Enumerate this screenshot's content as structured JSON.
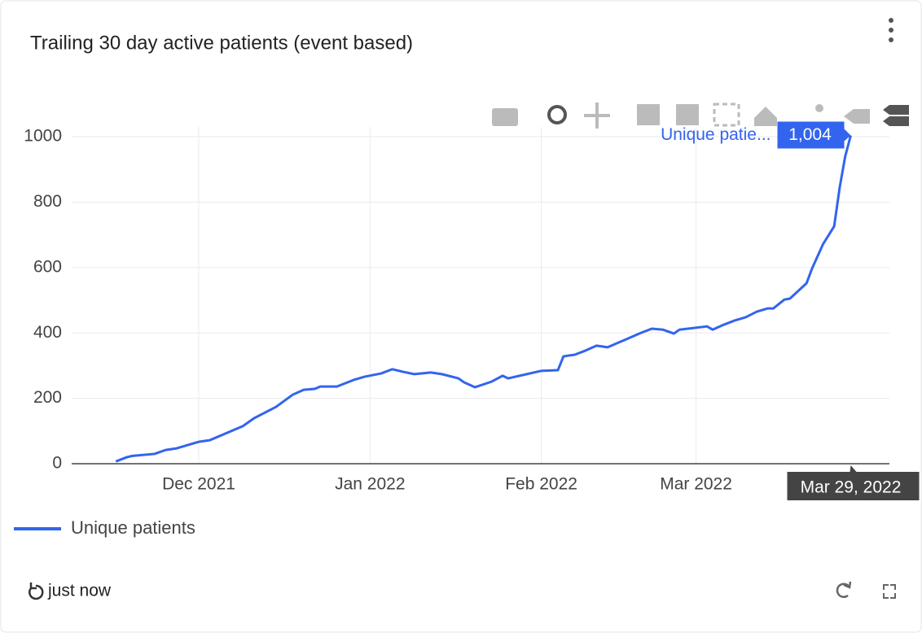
{
  "chart_data": {
    "type": "line",
    "title": "Trailing 30 day active patients (event based)",
    "x": [
      "2021-11-16",
      "2021-11-18",
      "2021-11-19",
      "2021-11-23",
      "2021-11-25",
      "2021-11-27",
      "2021-12-01",
      "2021-12-03",
      "2021-12-09",
      "2021-12-11",
      "2021-12-15",
      "2021-12-18",
      "2021-12-20",
      "2021-12-22",
      "2021-12-23",
      "2021-12-26",
      "2021-12-29",
      "2021-12-31",
      "2022-01-03",
      "2022-01-05",
      "2022-01-07",
      "2022-01-09",
      "2022-01-12",
      "2022-01-14",
      "2022-01-17",
      "2022-01-18",
      "2022-01-20",
      "2022-01-23",
      "2022-01-25",
      "2022-01-26",
      "2022-02-01",
      "2022-02-04",
      "2022-02-05",
      "2022-02-06",
      "2022-02-07",
      "2022-02-09",
      "2022-02-11",
      "2022-02-13",
      "2022-02-16",
      "2022-02-19",
      "2022-02-21",
      "2022-02-23",
      "2022-02-25",
      "2022-02-26",
      "2022-03-03",
      "2022-03-04",
      "2022-03-06",
      "2022-03-08",
      "2022-03-10",
      "2022-03-12",
      "2022-03-14",
      "2022-03-15",
      "2022-03-17",
      "2022-03-18",
      "2022-03-21",
      "2022-03-22",
      "2022-03-24",
      "2022-03-26",
      "2022-03-27",
      "2022-03-28",
      "2022-03-29"
    ],
    "series": [
      {
        "name": "Unique patients",
        "color": "#3264ee",
        "values": [
          7,
          20,
          24,
          30,
          42,
          47,
          67,
          72,
          115,
          139,
          174,
          211,
          226,
          229,
          236,
          236,
          256,
          266,
          276,
          289,
          281,
          274,
          279,
          274,
          261,
          249,
          234,
          251,
          269,
          261,
          284,
          286,
          328,
          331,
          333,
          346,
          361,
          356,
          378,
          400,
          413,
          410,
          398,
          410,
          420,
          410,
          425,
          438,
          448,
          465,
          475,
          475,
          502,
          505,
          552,
          597,
          672,
          726,
          845,
          940,
          1004
        ],
        "value_labels": [
          null,
          null,
          null,
          null,
          null,
          null,
          null,
          null,
          null,
          null,
          null,
          null,
          null,
          null,
          null,
          null,
          null,
          null,
          null,
          null,
          null,
          null,
          null,
          null,
          null,
          null,
          null,
          null,
          null,
          null,
          null,
          null,
          null,
          null,
          null,
          null,
          null,
          null,
          null,
          null,
          null,
          null,
          null,
          null,
          null,
          null,
          null,
          null,
          null,
          null,
          null,
          null,
          null,
          null,
          null,
          null,
          null,
          null,
          null,
          null,
          "1,004"
        ]
      }
    ],
    "xlim": [
      "2021-11-08",
      "2022-04-05"
    ],
    "xticks": [
      {
        "value": "2021-12-01",
        "label": "Dec 2021"
      },
      {
        "value": "2022-01-01",
        "label": "Jan 2022"
      },
      {
        "value": "2022-02-01",
        "label": "Feb 2022"
      },
      {
        "value": "2022-03-01",
        "label": "Mar 2022"
      }
    ],
    "ylim": [
      0,
      1030
    ],
    "yticks": [
      0,
      200,
      400,
      600,
      800,
      1000
    ],
    "grid": true,
    "hover": {
      "series_label": "Unique patie...",
      "x_label": "Mar 29, 2022"
    }
  },
  "footer": {
    "refresh_label": "just now"
  }
}
